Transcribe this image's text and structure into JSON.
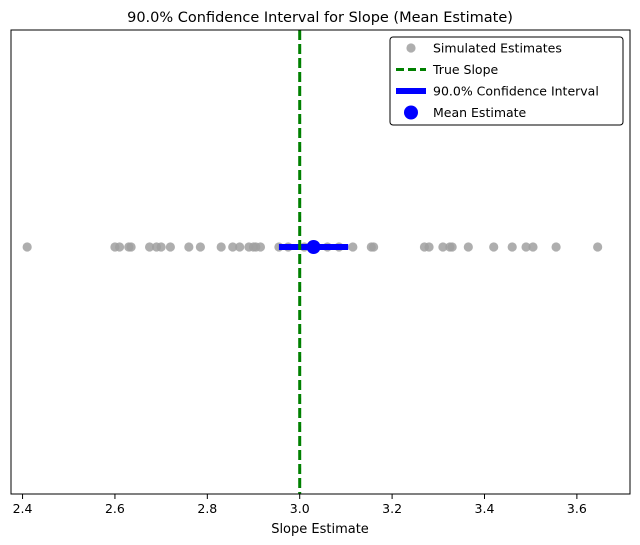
{
  "chart_data": {
    "type": "scatter",
    "title": "90.0% Confidence Interval for Slope (Mean Estimate)",
    "xlabel": "Slope Estimate",
    "ylabel": "",
    "xlim": [
      2.375,
      3.715
    ],
    "xticks": [
      "2.4",
      "2.6",
      "2.8",
      "3.0",
      "3.2",
      "3.4",
      "3.6"
    ],
    "grid": false,
    "legend_position": "top-right",
    "simulated_estimates": [
      2.41,
      2.6,
      2.61,
      2.63,
      2.635,
      2.675,
      2.69,
      2.7,
      2.72,
      2.76,
      2.785,
      2.83,
      2.855,
      2.87,
      2.89,
      2.9,
      2.905,
      2.915,
      2.955,
      2.975,
      3.01,
      3.03,
      3.06,
      3.085,
      3.115,
      3.155,
      3.16,
      3.27,
      3.28,
      3.31,
      3.325,
      3.33,
      3.365,
      3.42,
      3.46,
      3.49,
      3.505,
      3.555,
      3.645
    ],
    "true_slope": 3.0,
    "ci": [
      2.955,
      3.105
    ],
    "mean_estimate": 3.03,
    "colors": {
      "simulated": "#a0a0a0",
      "true_slope": "#008000",
      "ci": "#0000ff",
      "mean": "#0000ff"
    },
    "legend": [
      {
        "key": "simulated",
        "label": "Simulated Estimates"
      },
      {
        "key": "true_slope",
        "label": "True Slope"
      },
      {
        "key": "ci",
        "label": "90.0% Confidence Interval"
      },
      {
        "key": "mean",
        "label": "Mean Estimate"
      }
    ]
  }
}
